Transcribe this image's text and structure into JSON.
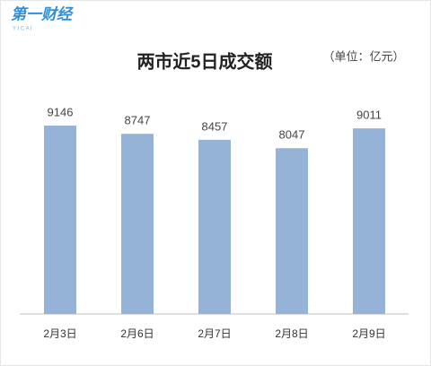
{
  "logo": {
    "name": "第一财经",
    "sub": "Y I C A I"
  },
  "chart_data": {
    "type": "bar",
    "title": "两市近5日成交额",
    "subtitle": "（单位：亿元）",
    "categories": [
      "2月3日",
      "2月6日",
      "2月7日",
      "2月8日",
      "2月9日"
    ],
    "values": [
      9146,
      8747,
      8457,
      8047,
      9011
    ],
    "color": "#95b3d7"
  }
}
